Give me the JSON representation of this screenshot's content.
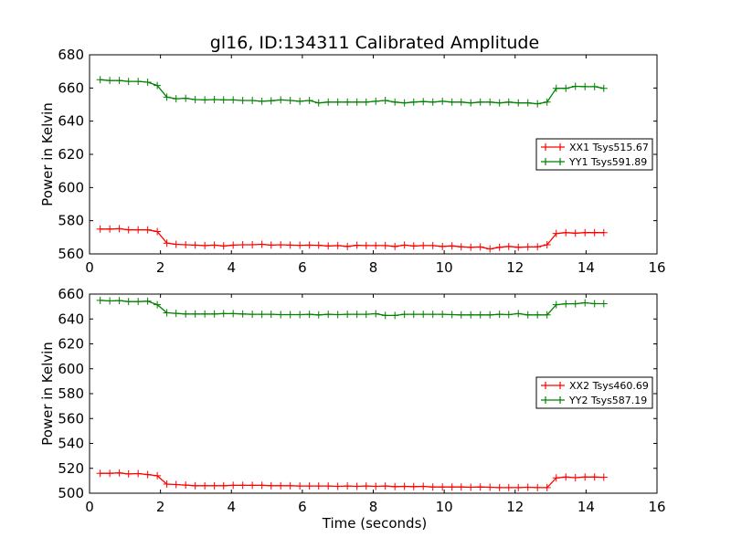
{
  "chart_data": {
    "type": "line",
    "title": "gl16, ID:134311 Calibrated Amplitude",
    "xlabel": "Time (seconds)",
    "x": [
      0.3,
      0.57,
      0.84,
      1.1,
      1.37,
      1.64,
      1.91,
      2.18,
      2.44,
      2.71,
      2.98,
      3.25,
      3.52,
      3.78,
      4.05,
      4.32,
      4.59,
      4.86,
      5.12,
      5.39,
      5.66,
      5.93,
      6.2,
      6.46,
      6.73,
      7.0,
      7.27,
      7.54,
      7.8,
      8.07,
      8.34,
      8.61,
      8.88,
      9.14,
      9.41,
      9.68,
      9.95,
      10.22,
      10.48,
      10.75,
      11.02,
      11.29,
      11.56,
      11.82,
      12.09,
      12.36,
      12.63,
      12.9,
      13.16,
      13.43,
      13.7,
      13.97,
      14.24,
      14.5
    ],
    "subplots": [
      {
        "ylabel": "Power in Kelvin",
        "xlim": [
          0,
          16
        ],
        "ylim": [
          560,
          680
        ],
        "xticks": [
          0,
          2,
          4,
          6,
          8,
          10,
          12,
          14,
          16
        ],
        "yticks": [
          560,
          580,
          600,
          620,
          640,
          660,
          680
        ],
        "legend_position": "center-right",
        "series": [
          {
            "name": "XX1 Tsys515.67",
            "color": "#ff0000",
            "values": [
              575,
              575,
              575.2,
              574.5,
              574.5,
              574.5,
              573.5,
              566.5,
              565.8,
              565.5,
              565.3,
              565,
              565.3,
              564.8,
              565.3,
              565.5,
              565.5,
              565.8,
              565.3,
              565.5,
              565.3,
              565.2,
              565.3,
              565.2,
              564.8,
              565,
              564.5,
              565.2,
              565,
              565,
              565,
              564.5,
              565.3,
              564.8,
              565,
              565,
              564.5,
              564.8,
              564.3,
              564,
              564.2,
              563,
              564,
              564.5,
              564,
              564.2,
              564.3,
              565.5,
              572.3,
              572.8,
              572.5,
              572.8,
              572.8,
              572.8
            ]
          },
          {
            "name": "YY1 Tsys591.89",
            "color": "#008000",
            "values": [
              665,
              664.5,
              664.5,
              664,
              664,
              663.5,
              661.5,
              654.5,
              653.5,
              653.8,
              653,
              652.8,
              653,
              652.8,
              652.8,
              652.5,
              652.5,
              652,
              652.3,
              652.8,
              652.5,
              652,
              652.5,
              651,
              651.5,
              651.5,
              651.5,
              651.5,
              651.5,
              652,
              652.5,
              651.5,
              651,
              651.5,
              651.8,
              651.5,
              652,
              651.5,
              651.5,
              651,
              651.5,
              651.5,
              651,
              651.5,
              651,
              651,
              650.5,
              651.5,
              659.8,
              659.8,
              661,
              660.8,
              660.8,
              659.8
            ]
          }
        ]
      },
      {
        "ylabel": "Power in Kelvin",
        "xlim": [
          0,
          16
        ],
        "ylim": [
          500,
          660
        ],
        "xticks": [
          0,
          2,
          4,
          6,
          8,
          10,
          12,
          14,
          16
        ],
        "yticks": [
          500,
          520,
          540,
          560,
          580,
          600,
          620,
          640,
          660
        ],
        "legend_position": "center-right",
        "series": [
          {
            "name": "XX2 Tsys460.69",
            "color": "#ff0000",
            "values": [
              516,
              516,
              516.3,
              515.5,
              515.8,
              515,
              514,
              507.3,
              507,
              506.5,
              506,
              506,
              506,
              506,
              506.3,
              506.3,
              506.3,
              506.3,
              506,
              506,
              506,
              505.8,
              505.8,
              505.8,
              505.8,
              505.5,
              505.8,
              505.5,
              505.8,
              505.5,
              505.8,
              505.3,
              505.5,
              505.3,
              505.5,
              505,
              505,
              505,
              505,
              504.8,
              505,
              504.8,
              504.5,
              504.5,
              504.5,
              504.8,
              504.5,
              504.5,
              512.3,
              513,
              512.5,
              513,
              513,
              512.8
            ]
          },
          {
            "name": "YY2 Tsys587.19",
            "color": "#008000",
            "values": [
              655,
              654.5,
              654.8,
              654,
              654,
              654.3,
              651.5,
              645,
              644.5,
              644,
              644,
              644,
              644,
              644.3,
              644.3,
              644,
              643.8,
              643.8,
              643.8,
              643.5,
              643.5,
              643.5,
              643.8,
              643.3,
              643.8,
              643.5,
              643.8,
              643.8,
              643.8,
              644.2,
              642.8,
              642.8,
              643.8,
              643.8,
              643.8,
              643.8,
              643.8,
              643.5,
              643.3,
              643.3,
              643.3,
              643.3,
              643.8,
              643.5,
              644.3,
              643.3,
              643.3,
              643.3,
              651.5,
              652.2,
              652.2,
              653,
              652.3,
              652.3
            ]
          }
        ]
      }
    ]
  }
}
